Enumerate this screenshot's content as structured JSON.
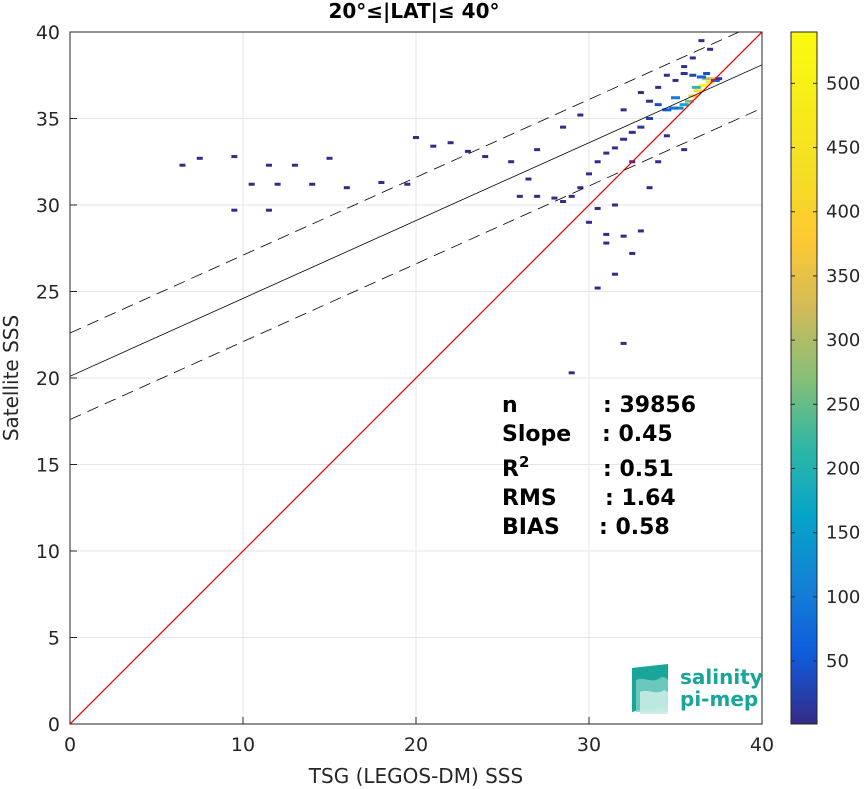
{
  "chart_data": {
    "type": "heatmap",
    "title": "20°≤|LAT|≤ 40°",
    "xlabel": "TSG (LEGOS-DM) SSS",
    "ylabel": "Satellite SSS",
    "xlim": [
      0,
      40
    ],
    "ylim": [
      0,
      40
    ],
    "xticks": [
      "0",
      "10",
      "20",
      "30",
      "40"
    ],
    "yticks": [
      "0",
      "5",
      "10",
      "15",
      "20",
      "25",
      "30",
      "35",
      "40"
    ],
    "grid": true,
    "colorbar": {
      "min": 1,
      "max": 540,
      "ticks": [
        "50",
        "100",
        "150",
        "200",
        "250",
        "300",
        "350",
        "400",
        "450",
        "500"
      ],
      "colormap": "parula"
    },
    "lines": [
      {
        "name": "identity",
        "color": "#ff0000",
        "x": [
          0,
          40
        ],
        "y": [
          0,
          40
        ]
      },
      {
        "name": "fit",
        "color": "#000000",
        "style": "solid",
        "x": [
          0,
          40
        ],
        "y": [
          20.1,
          38.1
        ]
      },
      {
        "name": "fit+band",
        "color": "#000000",
        "style": "dashed",
        "x": [
          0,
          40
        ],
        "y": [
          22.6,
          40.6
        ]
      },
      {
        "name": "fit-band",
        "color": "#000000",
        "style": "dashed",
        "x": [
          0,
          40
        ],
        "y": [
          17.6,
          35.6
        ]
      }
    ],
    "stats": [
      {
        "label": "n",
        "value": ": 39856"
      },
      {
        "label": "Slope",
        "value": ": 0.45"
      },
      {
        "label": "R",
        "sup": "2",
        "value": ": 0.51"
      },
      {
        "label": "RMS",
        "value": ": 1.64"
      },
      {
        "label": "BIAS",
        "value": ": 0.58"
      }
    ],
    "density_cells": [
      [
        36.6,
        36.9,
        540
      ],
      [
        36.3,
        36.6,
        420
      ],
      [
        36.0,
        36.3,
        380
      ],
      [
        37.0,
        37.1,
        460
      ],
      [
        36.8,
        37.3,
        300
      ],
      [
        35.8,
        36.0,
        260
      ],
      [
        35.5,
        35.8,
        180
      ],
      [
        36.2,
        36.8,
        220
      ],
      [
        35.2,
        35.6,
        120
      ],
      [
        37.2,
        37.3,
        350
      ],
      [
        34.9,
        35.6,
        90
      ],
      [
        35.0,
        36.2,
        100
      ],
      [
        34.5,
        35.5,
        60
      ],
      [
        34.0,
        35.8,
        40
      ],
      [
        33.5,
        35.0,
        25
      ],
      [
        33.0,
        34.5,
        15
      ],
      [
        32.5,
        34.2,
        8
      ],
      [
        32.0,
        33.8,
        6
      ],
      [
        31.5,
        33.3,
        5
      ],
      [
        31.0,
        33.0,
        4
      ],
      [
        30.5,
        32.5,
        3
      ],
      [
        30.0,
        31.8,
        3
      ],
      [
        29.5,
        31.0,
        2
      ],
      [
        29.0,
        30.5,
        2
      ],
      [
        28.5,
        30.2,
        2
      ],
      [
        28.0,
        30.4,
        2
      ],
      [
        27.0,
        30.5,
        1
      ],
      [
        26.0,
        30.5,
        1
      ],
      [
        25.5,
        32.5,
        1
      ],
      [
        24.0,
        32.8,
        1
      ],
      [
        23.0,
        33.1,
        1
      ],
      [
        22.0,
        33.6,
        1
      ],
      [
        21.0,
        33.4,
        1
      ],
      [
        20.0,
        33.9,
        1
      ],
      [
        19.5,
        31.2,
        1
      ],
      [
        18.0,
        31.3,
        1
      ],
      [
        16.0,
        31.0,
        1
      ],
      [
        15.0,
        32.7,
        1
      ],
      [
        14.0,
        31.2,
        1
      ],
      [
        13.0,
        32.3,
        1
      ],
      [
        12.0,
        31.2,
        1
      ],
      [
        11.5,
        32.3,
        1
      ],
      [
        10.5,
        31.2,
        1
      ],
      [
        9.5,
        32.8,
        1
      ],
      [
        9.5,
        29.7,
        1
      ],
      [
        7.5,
        32.7,
        1
      ],
      [
        6.5,
        32.3,
        1
      ],
      [
        11.5,
        29.7,
        1
      ],
      [
        30.0,
        29.0,
        1
      ],
      [
        31.0,
        28.3,
        1
      ],
      [
        31.5,
        26.0,
        1
      ],
      [
        30.5,
        25.2,
        1
      ],
      [
        29.0,
        20.3,
        1
      ],
      [
        32.0,
        22.0,
        1
      ],
      [
        32.5,
        27.2,
        1
      ],
      [
        33.0,
        28.5,
        1
      ],
      [
        34.0,
        32.5,
        2
      ],
      [
        34.5,
        34.0,
        3
      ],
      [
        35.5,
        33.2,
        1
      ],
      [
        37.0,
        39.0,
        1
      ],
      [
        36.5,
        39.5,
        1
      ],
      [
        36.0,
        38.5,
        2
      ],
      [
        35.5,
        38.0,
        2
      ],
      [
        33.0,
        36.5,
        2
      ],
      [
        32.0,
        35.5,
        1
      ],
      [
        29.5,
        35.2,
        1
      ],
      [
        28.5,
        34.5,
        1
      ],
      [
        27.0,
        33.2,
        1
      ],
      [
        26.5,
        31.5,
        1
      ],
      [
        32.5,
        32.5,
        3
      ],
      [
        33.5,
        31.0,
        2
      ],
      [
        31.5,
        30.0,
        2
      ],
      [
        30.5,
        29.8,
        2
      ],
      [
        31.0,
        27.8,
        1
      ],
      [
        32.0,
        28.2,
        1
      ],
      [
        35.0,
        37.2,
        5
      ],
      [
        34.0,
        36.8,
        4
      ],
      [
        33.5,
        36.0,
        6
      ],
      [
        34.5,
        37.5,
        3
      ],
      [
        35.5,
        37.6,
        8
      ],
      [
        36.0,
        37.5,
        30
      ],
      [
        36.5,
        37.4,
        60
      ],
      [
        36.8,
        37.6,
        40
      ],
      [
        37.3,
        37.2,
        70
      ],
      [
        37.5,
        37.3,
        20
      ]
    ]
  },
  "logo": {
    "line1": "salinity",
    "line2": "pi-mep"
  }
}
